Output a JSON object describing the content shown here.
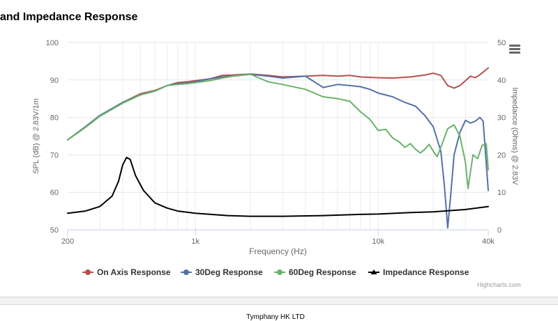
{
  "page": {
    "title": "and Impedance Response",
    "footer": "Tymphany HK LTD",
    "credits": "Highcharts.com"
  },
  "chart_data": {
    "type": "line",
    "xlabel": "Frequency (Hz)",
    "ylabel_left": "SPL (dB) @ 2.83V/1m",
    "ylabel_right": "Impedance (Ohms) @ 2.83V",
    "x_scale": "log",
    "xlim": [
      200,
      40000
    ],
    "x_ticks": [
      200,
      1000,
      10000,
      40000
    ],
    "x_tick_labels": [
      "200",
      "1k",
      "10k",
      "40k"
    ],
    "ylim_left": [
      50,
      100
    ],
    "y_ticks_left": [
      50,
      60,
      70,
      80,
      90,
      100
    ],
    "ylim_right": [
      0,
      50
    ],
    "y_ticks_right": [
      0,
      10,
      20,
      30,
      40,
      50
    ],
    "grid": true,
    "legend_position": "bottom",
    "series": [
      {
        "name": "On Axis Response",
        "color": "#b5504e",
        "axis": "left",
        "points": [
          [
            200,
            74
          ],
          [
            250,
            77.5
          ],
          [
            300,
            80.5
          ],
          [
            400,
            84
          ],
          [
            500,
            86.3
          ],
          [
            600,
            87.2
          ],
          [
            700,
            88.5
          ],
          [
            800,
            89.3
          ],
          [
            900,
            89.5
          ],
          [
            1000,
            89.8
          ],
          [
            1200,
            90.3
          ],
          [
            1400,
            91.2
          ],
          [
            1600,
            91.3
          ],
          [
            2000,
            91.6
          ],
          [
            2500,
            91.2
          ],
          [
            3000,
            90.8
          ],
          [
            4000,
            91
          ],
          [
            5000,
            91.2
          ],
          [
            6000,
            91
          ],
          [
            7000,
            91.2
          ],
          [
            8000,
            90.8
          ],
          [
            10000,
            90.6
          ],
          [
            12000,
            90.5
          ],
          [
            15000,
            90.8
          ],
          [
            18000,
            91.3
          ],
          [
            20000,
            91.8
          ],
          [
            22000,
            91.2
          ],
          [
            24000,
            88.5
          ],
          [
            26000,
            87.8
          ],
          [
            28000,
            88.5
          ],
          [
            30000,
            89.8
          ],
          [
            32000,
            91
          ],
          [
            34000,
            90.6
          ],
          [
            36000,
            91.4
          ],
          [
            40000,
            93.2
          ]
        ]
      },
      {
        "name": "30Deg Response",
        "color": "#5470a8",
        "axis": "left",
        "points": [
          [
            200,
            74
          ],
          [
            250,
            77.5
          ],
          [
            300,
            80.5
          ],
          [
            400,
            84
          ],
          [
            500,
            86
          ],
          [
            600,
            87
          ],
          [
            700,
            88.5
          ],
          [
            800,
            89
          ],
          [
            900,
            89.2
          ],
          [
            1000,
            89.5
          ],
          [
            1200,
            90.3
          ],
          [
            1400,
            90.8
          ],
          [
            1600,
            91
          ],
          [
            2000,
            91.5
          ],
          [
            2500,
            91
          ],
          [
            3000,
            90.5
          ],
          [
            4000,
            91
          ],
          [
            5000,
            88
          ],
          [
            6000,
            88.8
          ],
          [
            7000,
            88.5
          ],
          [
            8000,
            88.2
          ],
          [
            9000,
            87.5
          ],
          [
            10000,
            86.5
          ],
          [
            12000,
            85.5
          ],
          [
            14000,
            84
          ],
          [
            16000,
            83
          ],
          [
            18000,
            80.5
          ],
          [
            20000,
            77.5
          ],
          [
            22000,
            71
          ],
          [
            23000,
            62
          ],
          [
            24000,
            50.5
          ],
          [
            25000,
            60
          ],
          [
            26000,
            70
          ],
          [
            28000,
            76
          ],
          [
            30000,
            79.2
          ],
          [
            32000,
            78.5
          ],
          [
            34000,
            79
          ],
          [
            36000,
            80
          ],
          [
            37500,
            79
          ],
          [
            40000,
            60.5
          ]
        ]
      },
      {
        "name": "60Deg Response",
        "color": "#6ab26a",
        "axis": "left",
        "points": [
          [
            200,
            74
          ],
          [
            250,
            77.3
          ],
          [
            300,
            80.3
          ],
          [
            400,
            83.8
          ],
          [
            500,
            86
          ],
          [
            600,
            87
          ],
          [
            700,
            88.5
          ],
          [
            800,
            88.8
          ],
          [
            900,
            89
          ],
          [
            1000,
            89.3
          ],
          [
            1200,
            89.8
          ],
          [
            1400,
            90.5
          ],
          [
            1600,
            91
          ],
          [
            2000,
            91.5
          ],
          [
            2500,
            89.5
          ],
          [
            3000,
            88.8
          ],
          [
            4000,
            87.5
          ],
          [
            5000,
            85.5
          ],
          [
            6000,
            85
          ],
          [
            7000,
            84.3
          ],
          [
            8000,
            81.5
          ],
          [
            9000,
            79.5
          ],
          [
            10000,
            76.5
          ],
          [
            11000,
            76.8
          ],
          [
            12000,
            74.5
          ],
          [
            13000,
            73.5
          ],
          [
            14000,
            72
          ],
          [
            15000,
            73
          ],
          [
            16000,
            71.5
          ],
          [
            17000,
            70.5
          ],
          [
            18000,
            71.5
          ],
          [
            19000,
            72.8
          ],
          [
            20000,
            71
          ],
          [
            21000,
            69.5
          ],
          [
            22000,
            72
          ],
          [
            24000,
            77
          ],
          [
            26000,
            78
          ],
          [
            28000,
            75
          ],
          [
            30000,
            68
          ],
          [
            31000,
            61
          ],
          [
            33000,
            70
          ],
          [
            35000,
            69
          ],
          [
            37000,
            72.5
          ],
          [
            39000,
            73
          ],
          [
            40000,
            66
          ]
        ]
      },
      {
        "name": "Impedance Response",
        "color": "#000000",
        "axis": "right",
        "points": [
          [
            200,
            4.4
          ],
          [
            250,
            5
          ],
          [
            300,
            6.2
          ],
          [
            350,
            9
          ],
          [
            380,
            13
          ],
          [
            400,
            17.3
          ],
          [
            420,
            19.3
          ],
          [
            440,
            18.8
          ],
          [
            470,
            14.5
          ],
          [
            520,
            10.5
          ],
          [
            600,
            7.2
          ],
          [
            700,
            5.8
          ],
          [
            800,
            5
          ],
          [
            1000,
            4.4
          ],
          [
            1500,
            3.8
          ],
          [
            2000,
            3.6
          ],
          [
            3000,
            3.6
          ],
          [
            5000,
            3.8
          ],
          [
            8000,
            4.1
          ],
          [
            10000,
            4.2
          ],
          [
            15000,
            4.6
          ],
          [
            20000,
            4.8
          ],
          [
            30000,
            5.4
          ],
          [
            40000,
            6.2
          ]
        ]
      }
    ]
  }
}
